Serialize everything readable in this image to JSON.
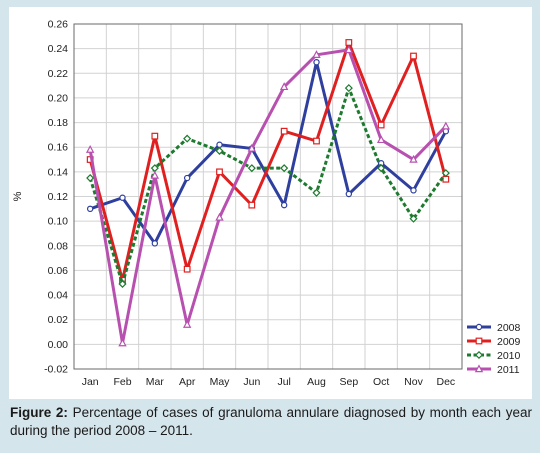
{
  "chart_data": {
    "type": "line",
    "categories": [
      "Jan",
      "Feb",
      "Mar",
      "Apr",
      "May",
      "Jun",
      "Jul",
      "Aug",
      "Sep",
      "Oct",
      "Nov",
      "Dec"
    ],
    "ylabel": "%",
    "ylim": [
      -0.02,
      0.26
    ],
    "yticks": [
      "0.26",
      "0.24",
      "0.22",
      "0.20",
      "0.18",
      "0.16",
      "0.14",
      "0.12",
      "0.10",
      "0.08",
      "0.06",
      "0.04",
      "0.02",
      "0.00",
      "-0.02"
    ],
    "grid": true,
    "legend_position": "bottom-right",
    "series": [
      {
        "name": "2008",
        "color": "#2e3f9e",
        "marker": "circle",
        "dash": false,
        "values": [
          0.11,
          0.119,
          0.082,
          0.135,
          0.162,
          0.159,
          0.113,
          0.229,
          0.122,
          0.147,
          0.125,
          0.173
        ]
      },
      {
        "name": "2009",
        "color": "#e02020",
        "marker": "square",
        "dash": false,
        "values": [
          0.15,
          0.052,
          0.169,
          0.061,
          0.14,
          0.113,
          0.173,
          0.165,
          0.245,
          0.178,
          0.234,
          0.134
        ]
      },
      {
        "name": "2010",
        "color": "#1d7a2e",
        "marker": "diamond",
        "dash": true,
        "values": [
          0.135,
          0.049,
          0.143,
          0.167,
          0.157,
          0.143,
          0.143,
          0.123,
          0.208,
          0.143,
          0.102,
          0.139
        ]
      },
      {
        "name": "2011",
        "color": "#b850b0",
        "marker": "triangle",
        "dash": false,
        "values": [
          0.158,
          0.001,
          0.137,
          0.016,
          0.103,
          0.159,
          0.209,
          0.235,
          0.239,
          0.166,
          0.15,
          0.177
        ]
      }
    ]
  },
  "caption": {
    "label": "Figure 2:",
    "text": " Percentage of cases of granuloma annulare diagnosed by month each year during the period 2008 – 2011."
  }
}
